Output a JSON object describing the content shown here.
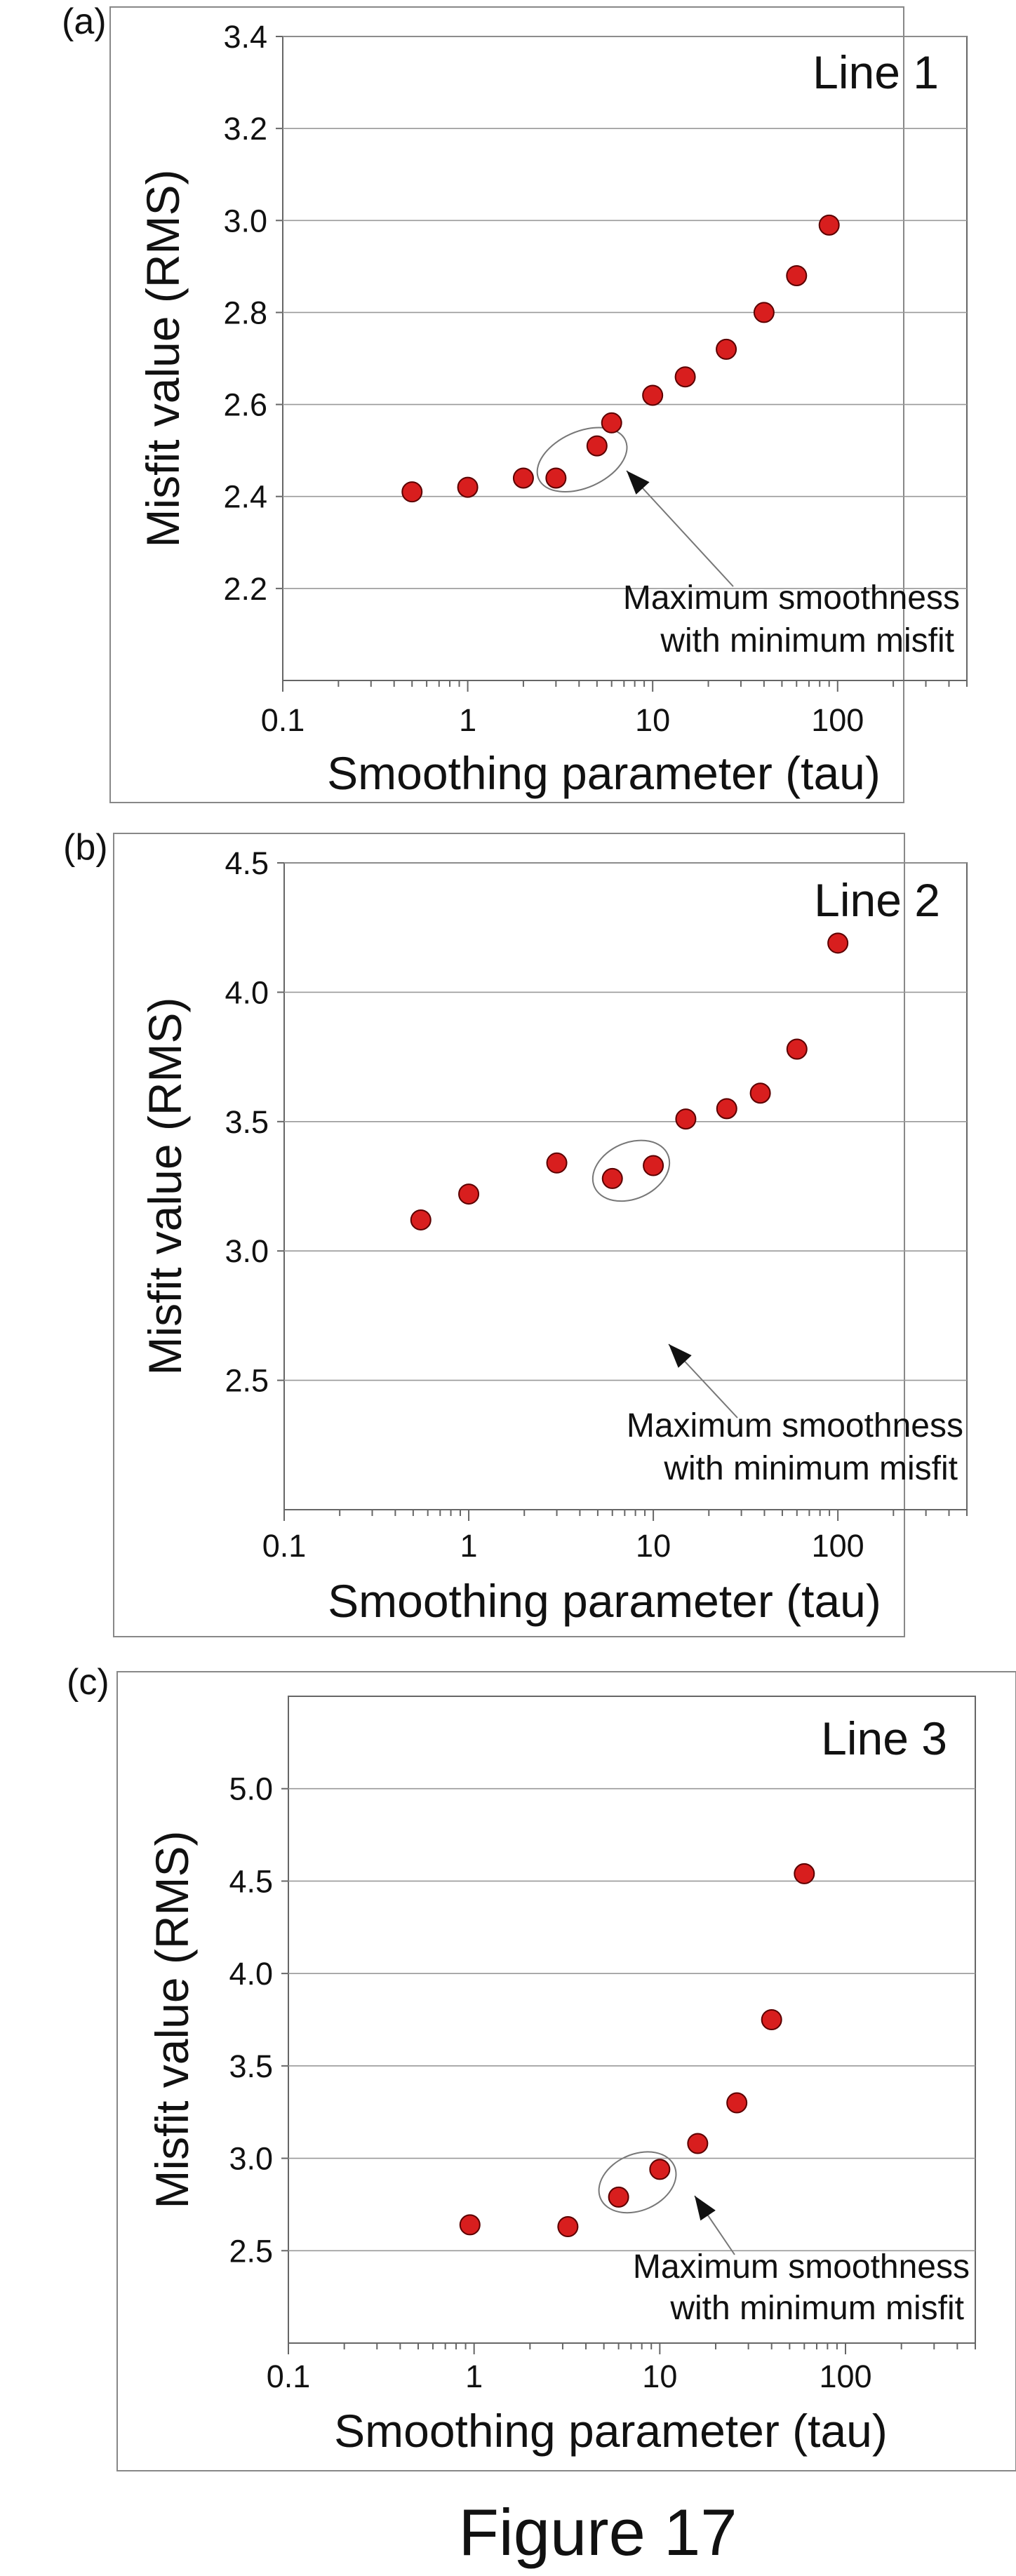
{
  "figure_caption": "Figure 17",
  "colors": {
    "marker_fill": "#d81e1e",
    "marker_stroke": "#5a0000",
    "axis": "#666666",
    "grid": "#999999",
    "frame": "#888888",
    "ellipse": "#777777"
  },
  "chart_data": [
    {
      "type": "scatter",
      "panel_label": "(a)",
      "title": "Line 1",
      "xlabel": "Smoothing parameter (tau)",
      "ylabel": "Misfit value (RMS)",
      "x_scale": "log",
      "xlim": [
        0.1,
        500
      ],
      "ylim": [
        2.0,
        3.4
      ],
      "x_ticks": [
        0.1,
        1,
        10,
        100
      ],
      "x_tick_labels": [
        "0.1",
        "1",
        "10",
        "100"
      ],
      "y_ticks": [
        2.2,
        2.4,
        2.6,
        2.8,
        3.0,
        3.2,
        3.4
      ],
      "y_tick_labels": [
        "2.2",
        "2.4",
        "2.6",
        "2.8",
        "3.0",
        "3.2",
        "3.4"
      ],
      "grid": "horizontal",
      "x": [
        0.5,
        1,
        2,
        3,
        5,
        6,
        10,
        15,
        25,
        40,
        60,
        90
      ],
      "y": [
        2.41,
        2.42,
        2.44,
        2.44,
        2.51,
        2.56,
        2.62,
        2.66,
        2.72,
        2.8,
        2.88,
        2.99
      ],
      "highlight": {
        "x_range": [
          2.3,
          7.5
        ],
        "y_center": 2.48
      },
      "annotation": [
        "Maximum smoothness",
        "with minimum misfit"
      ]
    },
    {
      "type": "scatter",
      "panel_label": "(b)",
      "title": "Line 2",
      "xlabel": "Smoothing parameter (tau)",
      "ylabel": "Misfit value (RMS)",
      "x_scale": "log",
      "xlim": [
        0.1,
        500
      ],
      "ylim": [
        2.0,
        4.5
      ],
      "x_ticks": [
        0.1,
        1,
        10,
        100
      ],
      "x_tick_labels": [
        "0.1",
        "1",
        "10",
        "100"
      ],
      "y_ticks": [
        2.5,
        3.0,
        3.5,
        4.0,
        4.5
      ],
      "y_tick_labels": [
        "2.5",
        "3.0",
        "3.5",
        "4.0",
        "4.5"
      ],
      "grid": "horizontal",
      "x": [
        0.55,
        1,
        3,
        6,
        10,
        15,
        25,
        38,
        60,
        100
      ],
      "y": [
        3.12,
        3.22,
        3.34,
        3.28,
        3.33,
        3.51,
        3.55,
        3.61,
        3.78,
        4.19
      ],
      "highlight": {
        "x_range": [
          4.6,
          12.5
        ],
        "y_center": 3.31
      },
      "annotation": [
        "Maximum smoothness",
        "with minimum misfit"
      ]
    },
    {
      "type": "scatter",
      "panel_label": "(c)",
      "title": "Line 3",
      "xlabel": "Smoothing parameter (tau)",
      "ylabel": "Misfit value (RMS)",
      "x_scale": "log",
      "xlim": [
        0.1,
        500
      ],
      "ylim": [
        2.0,
        5.5
      ],
      "x_ticks": [
        0.1,
        1,
        10,
        100
      ],
      "x_tick_labels": [
        "0.1",
        "1",
        "10",
        "100"
      ],
      "y_ticks": [
        2.5,
        3.0,
        3.5,
        4.0,
        4.5,
        5.0
      ],
      "y_tick_labels": [
        "2.5",
        "3.0",
        "3.5",
        "4.0",
        "4.5",
        "5.0"
      ],
      "grid": "horizontal",
      "x": [
        0.95,
        3.2,
        6,
        10,
        16,
        26,
        40,
        60
      ],
      "y": [
        2.64,
        2.63,
        2.79,
        2.94,
        3.08,
        3.3,
        3.75,
        4.54
      ],
      "highlight": {
        "x_range": [
          4.6,
          12.5
        ],
        "y_center": 2.87
      },
      "annotation": [
        "Maximum smoothness",
        "with minimum misfit"
      ]
    }
  ]
}
